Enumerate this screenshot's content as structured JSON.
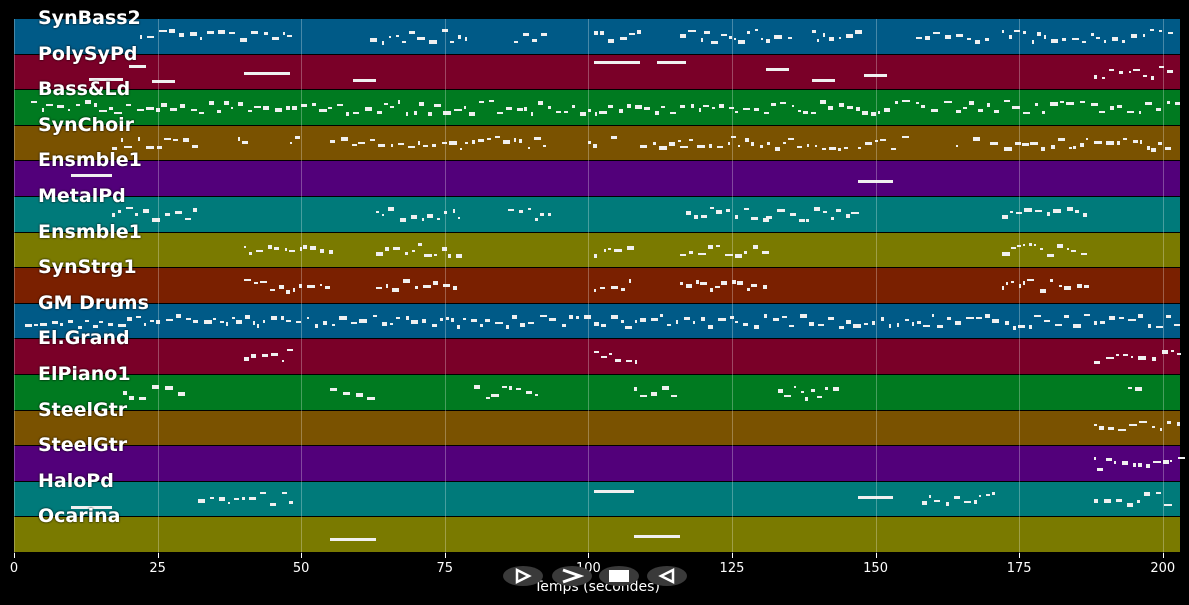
{
  "tracks": [
    {
      "name": "SynBass2",
      "color": "#005a87"
    },
    {
      "name": "PolySyPd",
      "color": "#7a0028"
    },
    {
      "name": "Bass&Ld",
      "color": "#007a20"
    },
    {
      "name": "SynChoir",
      "color": "#7a5200"
    },
    {
      "name": "Ensmble1",
      "color": "#52007a"
    },
    {
      "name": "MetalPd",
      "color": "#007a7a"
    },
    {
      "name": "Ensmble1",
      "color": "#7a7a00"
    },
    {
      "name": "SynStrg1",
      "color": "#7a2000"
    },
    {
      "name": "GM Drums",
      "color": "#005a87"
    },
    {
      "name": "El.Grand",
      "color": "#7a0028"
    },
    {
      "name": "ElPiano1",
      "color": "#007a20"
    },
    {
      "name": "SteelGtr",
      "color": "#7a5200"
    },
    {
      "name": "SteelGtr",
      "color": "#52007a"
    },
    {
      "name": "HaloPd",
      "color": "#007a7a"
    },
    {
      "name": "Ocarina",
      "color": "#7a7a00"
    }
  ],
  "axis": {
    "xlabel": "Temps (secondes)",
    "ticks": [
      "0",
      "25",
      "50",
      "75",
      "100",
      "125",
      "150",
      "175",
      "200"
    ],
    "tick_values": [
      0,
      25,
      50,
      75,
      100,
      125,
      150,
      175,
      200
    ],
    "xmax": 203
  },
  "controls": [
    {
      "name": "rewind-button",
      "icon": "rewind-icon"
    },
    {
      "name": "play-button",
      "icon": "play-icon"
    },
    {
      "name": "stop-button",
      "icon": "stop-icon"
    },
    {
      "name": "back-button",
      "icon": "back-icon"
    }
  ],
  "note_segments": [
    [
      [
        22,
        48
      ],
      [
        62,
        79
      ],
      [
        87,
        93
      ],
      [
        101,
        109
      ],
      [
        116,
        136
      ],
      [
        139,
        147
      ],
      [
        157,
        170
      ],
      [
        172,
        202
      ]
    ],
    [
      [
        13,
        19
      ],
      [
        20,
        23
      ],
      [
        24,
        28
      ],
      [
        40,
        48
      ],
      [
        59,
        63
      ],
      [
        101,
        109
      ],
      [
        112,
        117
      ],
      [
        131,
        135
      ],
      [
        139,
        143
      ],
      [
        148,
        152
      ],
      [
        188,
        202
      ]
    ],
    [
      [
        3,
        203
      ]
    ],
    [
      [
        17,
        32
      ],
      [
        39,
        40
      ],
      [
        48,
        49
      ],
      [
        55,
        61
      ],
      [
        62,
        93
      ],
      [
        100,
        101
      ],
      [
        104,
        105
      ],
      [
        109,
        116
      ],
      [
        116,
        146
      ],
      [
        147,
        155
      ],
      [
        164,
        165
      ],
      [
        167,
        169
      ],
      [
        170,
        187
      ],
      [
        188,
        201
      ]
    ],
    [
      [
        10,
        17
      ],
      [
        147,
        153
      ]
    ],
    [
      [
        17,
        32
      ],
      [
        63,
        78
      ],
      [
        86,
        93
      ],
      [
        117,
        131
      ],
      [
        131,
        146
      ],
      [
        172,
        187
      ]
    ],
    [
      [
        40,
        55
      ],
      [
        63,
        78
      ],
      [
        101,
        108
      ],
      [
        116,
        131
      ],
      [
        172,
        187
      ]
    ],
    [
      [
        40,
        55
      ],
      [
        63,
        78
      ],
      [
        101,
        108
      ],
      [
        116,
        131
      ],
      [
        172,
        187
      ]
    ],
    [
      [
        2,
        203
      ]
    ],
    [
      [
        40,
        48
      ],
      [
        101,
        109
      ],
      [
        188,
        203
      ]
    ],
    [
      [
        19,
        30
      ],
      [
        55,
        62
      ],
      [
        80,
        91
      ],
      [
        108,
        115
      ],
      [
        133,
        144
      ],
      [
        194,
        196
      ]
    ],
    [
      [
        188,
        203
      ]
    ],
    [
      [
        188,
        203
      ]
    ],
    [
      [
        10,
        17
      ],
      [
        32,
        48
      ],
      [
        101,
        108
      ],
      [
        147,
        153
      ],
      [
        158,
        171
      ],
      [
        188,
        201
      ]
    ],
    [
      [
        55,
        63
      ],
      [
        108,
        116
      ]
    ]
  ]
}
